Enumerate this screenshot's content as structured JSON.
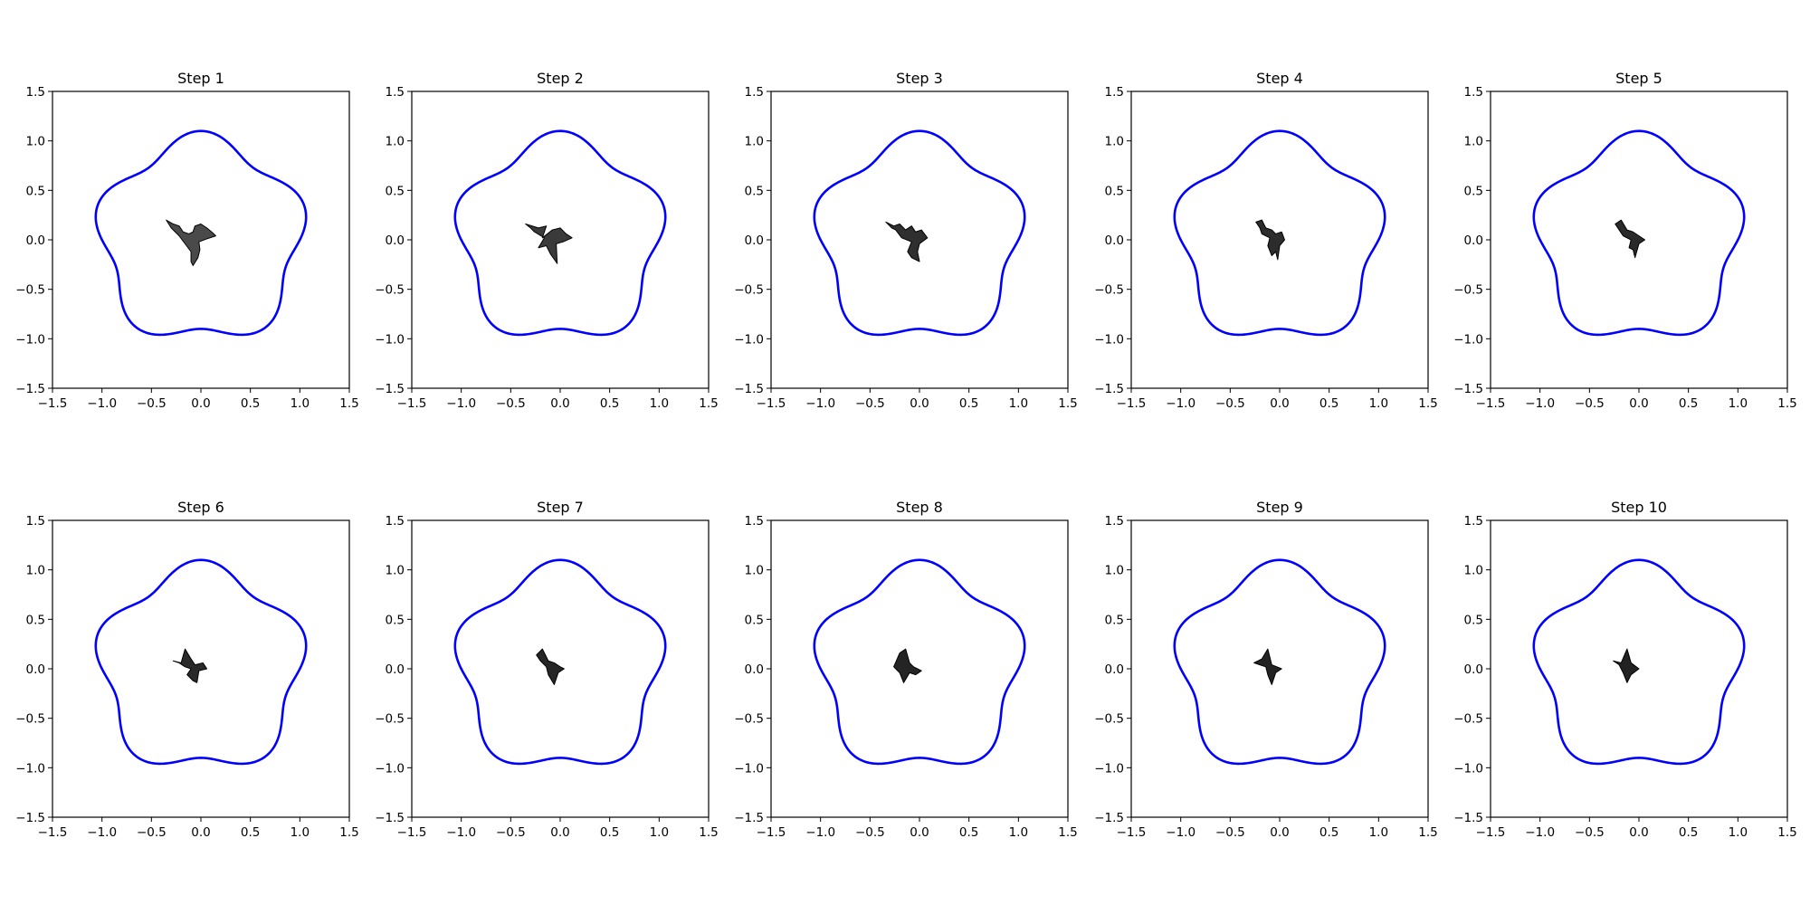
{
  "chart_data": [
    {
      "type": "area",
      "title": "Step 1",
      "xlim": [
        -1.5,
        1.5
      ],
      "ylim": [
        -1.5,
        1.5
      ],
      "xticks": [
        "−1.5",
        "−1.0",
        "−0.5",
        "0.0",
        "0.5",
        "1.0",
        "1.5"
      ],
      "yticks": [
        "−1.5",
        "−1.0",
        "−0.5",
        "0.0",
        "0.5",
        "1.0",
        "1.5"
      ],
      "grid": false,
      "series": [
        {
          "kind": "boundary-curve",
          "color": "#0000ff",
          "equation": "r = 1 + 0.1*sin(5*theta)"
        },
        {
          "kind": "filled-polygon",
          "color": "#4a4a4a",
          "x": [
            -0.35,
            -0.28,
            -0.22,
            -0.18,
            -0.12,
            -0.08,
            -0.06,
            0.0,
            0.06,
            0.12,
            0.15,
            0.06,
            -0.02,
            -0.01,
            -0.03,
            -0.08,
            -0.1,
            -0.1,
            -0.16,
            -0.22,
            -0.3
          ],
          "y": [
            0.2,
            0.16,
            0.14,
            0.08,
            0.06,
            0.08,
            0.14,
            0.16,
            0.12,
            0.07,
            0.04,
            0.01,
            -0.02,
            -0.1,
            -0.18,
            -0.26,
            -0.22,
            -0.12,
            -0.04,
            0.04,
            0.12
          ]
        }
      ]
    },
    {
      "type": "area",
      "title": "Step 2",
      "xlim": [
        -1.5,
        1.5
      ],
      "ylim": [
        -1.5,
        1.5
      ],
      "xticks": [
        "−1.5",
        "−1.0",
        "−0.5",
        "0.0",
        "0.5",
        "1.0",
        "1.5"
      ],
      "yticks": [
        "−1.5",
        "−1.0",
        "−0.5",
        "0.0",
        "0.5",
        "1.0",
        "1.5"
      ],
      "grid": false,
      "series": [
        {
          "kind": "boundary-curve",
          "color": "#0000ff",
          "equation": "r = 1 + 0.1*sin(5*theta)"
        },
        {
          "kind": "filled-polygon",
          "color": "#3a3a3a",
          "x": [
            -0.35,
            -0.22,
            -0.14,
            -0.18,
            -0.08,
            0.0,
            0.06,
            0.12,
            0.03,
            -0.04,
            -0.03,
            -0.1,
            -0.14,
            -0.22,
            -0.16,
            -0.26,
            -0.3
          ],
          "y": [
            0.16,
            0.12,
            0.14,
            0.02,
            0.1,
            0.12,
            0.06,
            0.02,
            -0.02,
            -0.04,
            -0.24,
            -0.14,
            -0.06,
            -0.08,
            0.02,
            0.08,
            0.12
          ]
        }
      ]
    },
    {
      "type": "area",
      "title": "Step 3",
      "xlim": [
        -1.5,
        1.5
      ],
      "ylim": [
        -1.5,
        1.5
      ],
      "xticks": [
        "−1.5",
        "−1.0",
        "−0.5",
        "0.0",
        "0.5",
        "1.0",
        "1.5"
      ],
      "yticks": [
        "−1.5",
        "−1.0",
        "−0.5",
        "0.0",
        "0.5",
        "1.0",
        "1.5"
      ],
      "grid": false,
      "series": [
        {
          "kind": "boundary-curve",
          "color": "#0000ff",
          "equation": "r = 1 + 0.1*sin(5*theta)"
        },
        {
          "kind": "filled-polygon",
          "color": "#2f2f2f",
          "x": [
            -0.34,
            -0.26,
            -0.2,
            -0.14,
            -0.08,
            -0.04,
            0.02,
            0.08,
            0.0,
            -0.02,
            0.0,
            -0.08,
            -0.12,
            -0.08,
            -0.18,
            -0.24,
            -0.28
          ],
          "y": [
            0.18,
            0.14,
            0.16,
            0.1,
            0.14,
            0.08,
            0.1,
            0.02,
            -0.04,
            -0.12,
            -0.22,
            -0.18,
            -0.12,
            -0.02,
            0.02,
            0.1,
            0.12
          ]
        }
      ]
    },
    {
      "type": "area",
      "title": "Step 4",
      "xlim": [
        -1.5,
        1.5
      ],
      "ylim": [
        -1.5,
        1.5
      ],
      "xticks": [
        "−1.5",
        "−1.0",
        "−0.5",
        "0.0",
        "0.5",
        "1.0",
        "1.5"
      ],
      "yticks": [
        "−1.5",
        "−1.0",
        "−0.5",
        "0.0",
        "0.5",
        "1.0",
        "1.5"
      ],
      "grid": false,
      "series": [
        {
          "kind": "boundary-curve",
          "color": "#0000ff",
          "equation": "r = 1 + 0.1*sin(5*theta)"
        },
        {
          "kind": "filled-polygon",
          "color": "#2c2c2c",
          "x": [
            -0.24,
            -0.18,
            -0.14,
            -0.08,
            -0.04,
            0.02,
            0.05,
            0.0,
            -0.02,
            -0.04,
            -0.08,
            -0.12,
            -0.1,
            -0.18,
            -0.2
          ],
          "y": [
            0.18,
            0.2,
            0.12,
            0.1,
            0.06,
            0.08,
            0.0,
            -0.06,
            -0.2,
            -0.12,
            -0.16,
            -0.06,
            0.02,
            0.06,
            0.12
          ]
        }
      ]
    },
    {
      "type": "area",
      "title": "Step 5",
      "xlim": [
        -1.5,
        1.5
      ],
      "ylim": [
        -1.5,
        1.5
      ],
      "xticks": [
        "−1.5",
        "−1.0",
        "−0.5",
        "0.0",
        "0.5",
        "1.0",
        "1.5"
      ],
      "yticks": [
        "−1.5",
        "−1.0",
        "−0.5",
        "0.0",
        "0.5",
        "1.0",
        "1.5"
      ],
      "grid": false,
      "series": [
        {
          "kind": "boundary-curve",
          "color": "#0000ff",
          "equation": "r = 1 + 0.1*sin(5*theta)"
        },
        {
          "kind": "filled-polygon",
          "color": "#2a2a2a",
          "x": [
            -0.24,
            -0.18,
            -0.12,
            -0.06,
            0.0,
            0.06,
            0.0,
            -0.04,
            -0.06,
            -0.1,
            -0.08,
            -0.16,
            -0.2
          ],
          "y": [
            0.16,
            0.2,
            0.1,
            0.08,
            0.04,
            0.0,
            -0.04,
            -0.18,
            -0.1,
            -0.08,
            0.0,
            0.04,
            0.1
          ]
        }
      ]
    },
    {
      "type": "area",
      "title": "Step 6",
      "xlim": [
        -1.5,
        1.5
      ],
      "ylim": [
        -1.5,
        1.5
      ],
      "xticks": [
        "−1.5",
        "−1.0",
        "−0.5",
        "0.0",
        "0.5",
        "1.0",
        "1.5"
      ],
      "yticks": [
        "−1.5",
        "−1.0",
        "−0.5",
        "0.0",
        "0.5",
        "1.0",
        "1.5"
      ],
      "grid": false,
      "series": [
        {
          "kind": "boundary-curve",
          "color": "#0000ff",
          "equation": "r = 1 + 0.1*sin(5*theta)"
        },
        {
          "kind": "filled-polygon",
          "color": "#2a2a2a",
          "x": [
            -0.28,
            -0.2,
            -0.16,
            -0.1,
            -0.06,
            0.02,
            0.06,
            -0.02,
            -0.04,
            -0.08,
            -0.14,
            -0.1,
            -0.16,
            -0.22
          ],
          "y": [
            0.08,
            0.06,
            0.2,
            0.1,
            0.04,
            0.06,
            0.0,
            -0.02,
            -0.14,
            -0.12,
            -0.06,
            0.0,
            0.02,
            0.06
          ]
        }
      ]
    },
    {
      "type": "area",
      "title": "Step 7",
      "xlim": [
        -1.5,
        1.5
      ],
      "ylim": [
        -1.5,
        1.5
      ],
      "xticks": [
        "−1.5",
        "−1.0",
        "−0.5",
        "0.0",
        "0.5",
        "1.0",
        "1.5"
      ],
      "yticks": [
        "−1.5",
        "−1.0",
        "−0.5",
        "0.0",
        "0.5",
        "1.0",
        "1.5"
      ],
      "grid": false,
      "series": [
        {
          "kind": "boundary-curve",
          "color": "#0000ff",
          "equation": "r = 1 + 0.1*sin(5*theta)"
        },
        {
          "kind": "filled-polygon",
          "color": "#262626",
          "x": [
            -0.24,
            -0.18,
            -0.12,
            -0.06,
            0.0,
            0.04,
            -0.02,
            -0.06,
            -0.12,
            -0.14,
            -0.2
          ],
          "y": [
            0.14,
            0.2,
            0.08,
            0.06,
            0.02,
            0.0,
            -0.04,
            -0.16,
            -0.06,
            0.02,
            0.08
          ]
        }
      ]
    },
    {
      "type": "area",
      "title": "Step 8",
      "xlim": [
        -1.5,
        1.5
      ],
      "ylim": [
        -1.5,
        1.5
      ],
      "xticks": [
        "−1.5",
        "−1.0",
        "−0.5",
        "0.0",
        "0.5",
        "1.0",
        "1.5"
      ],
      "yticks": [
        "−1.5",
        "−1.0",
        "−0.5",
        "0.0",
        "0.5",
        "1.0",
        "1.5"
      ],
      "grid": false,
      "series": [
        {
          "kind": "boundary-curve",
          "color": "#0000ff",
          "equation": "r = 1 + 0.1*sin(5*theta)"
        },
        {
          "kind": "filled-polygon",
          "color": "#242424",
          "x": [
            -0.26,
            -0.2,
            -0.14,
            -0.1,
            -0.06,
            0.02,
            -0.04,
            -0.1,
            -0.16,
            -0.2,
            -0.24
          ],
          "y": [
            0.02,
            0.16,
            0.2,
            0.06,
            0.02,
            -0.02,
            -0.06,
            -0.04,
            -0.14,
            -0.04,
            0.0
          ]
        }
      ]
    },
    {
      "type": "area",
      "title": "Step 9",
      "xlim": [
        -1.5,
        1.5
      ],
      "ylim": [
        -1.5,
        1.5
      ],
      "xticks": [
        "−1.5",
        "−1.0",
        "−0.5",
        "0.0",
        "0.5",
        "1.0",
        "1.5"
      ],
      "yticks": [
        "−1.5",
        "−1.0",
        "−0.5",
        "0.0",
        "0.5",
        "1.0",
        "1.5"
      ],
      "grid": false,
      "series": [
        {
          "kind": "boundary-curve",
          "color": "#0000ff",
          "equation": "r = 1 + 0.1*sin(5*theta)"
        },
        {
          "kind": "filled-polygon",
          "color": "#232323",
          "x": [
            -0.26,
            -0.18,
            -0.12,
            -0.08,
            0.02,
            -0.04,
            -0.08,
            -0.12,
            -0.14,
            -0.2
          ],
          "y": [
            0.06,
            0.1,
            0.2,
            0.04,
            0.0,
            -0.04,
            -0.16,
            -0.06,
            0.02,
            0.04
          ]
        }
      ]
    },
    {
      "type": "area",
      "title": "Step 10",
      "xlim": [
        -1.5,
        1.5
      ],
      "ylim": [
        -1.5,
        1.5
      ],
      "xticks": [
        "−1.5",
        "−1.0",
        "−0.5",
        "0.0",
        "0.5",
        "1.0",
        "1.5"
      ],
      "yticks": [
        "−1.5",
        "−1.0",
        "−0.5",
        "0.0",
        "0.5",
        "1.0",
        "1.5"
      ],
      "grid": false,
      "series": [
        {
          "kind": "boundary-curve",
          "color": "#0000ff",
          "equation": "r = 1 + 0.1*sin(5*theta)"
        },
        {
          "kind": "filled-polygon",
          "color": "#222222",
          "x": [
            -0.26,
            -0.18,
            -0.12,
            -0.08,
            0.0,
            -0.08,
            -0.12,
            -0.16,
            -0.2
          ],
          "y": [
            0.08,
            0.06,
            0.2,
            0.06,
            0.0,
            -0.06,
            -0.14,
            -0.04,
            0.04
          ]
        }
      ]
    }
  ]
}
